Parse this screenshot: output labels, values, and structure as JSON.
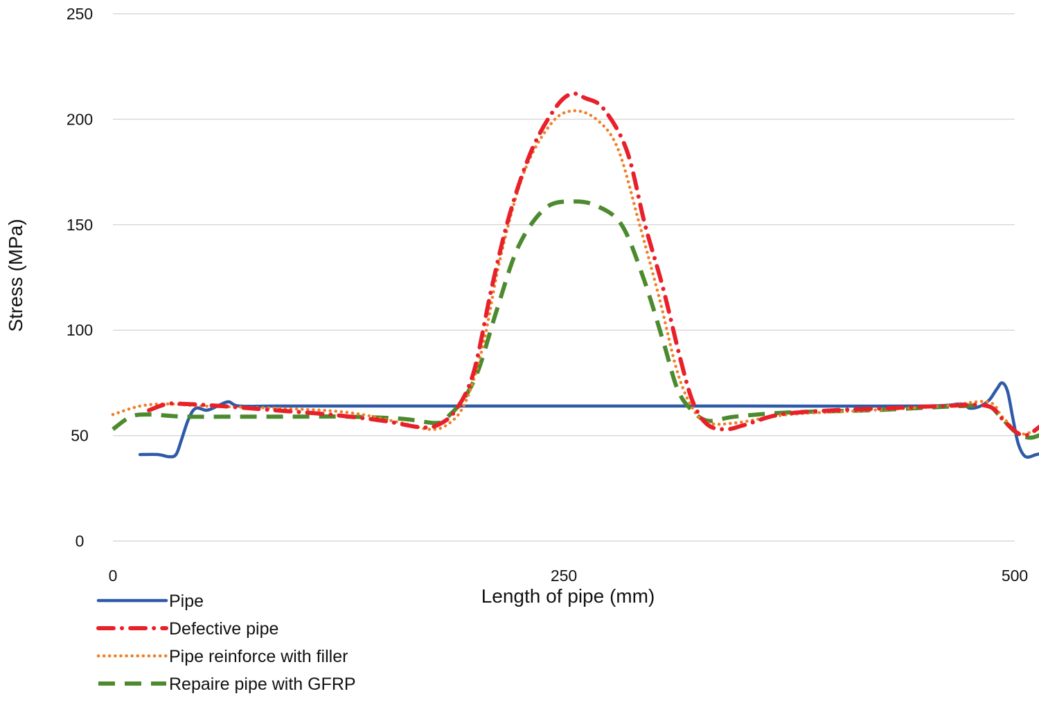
{
  "chart_data": {
    "type": "line",
    "title": "",
    "xlabel": "Length of pipe (mm)",
    "ylabel": "Stress (MPa)",
    "xlim": [
      0,
      500
    ],
    "ylim": [
      0,
      250
    ],
    "x_ticks": [
      0,
      250,
      500
    ],
    "y_ticks": [
      0,
      50,
      100,
      150,
      200,
      250
    ],
    "grid": "horizontal",
    "legend_position": "bottom-left",
    "series": [
      {
        "name": "Pipe",
        "color": "#2E5AA8",
        "style": "solid",
        "points": [
          [
            15,
            41
          ],
          [
            25,
            41
          ],
          [
            31,
            40
          ],
          [
            35,
            41
          ],
          [
            38,
            48
          ],
          [
            42,
            58
          ],
          [
            46,
            63
          ],
          [
            52,
            62
          ],
          [
            58,
            64
          ],
          [
            64,
            66
          ],
          [
            70,
            64
          ],
          [
            90,
            64
          ],
          [
            150,
            64
          ],
          [
            250,
            64
          ],
          [
            350,
            64
          ],
          [
            450,
            64
          ],
          [
            470,
            65
          ],
          [
            475,
            63
          ],
          [
            481,
            64
          ],
          [
            486,
            67
          ],
          [
            490,
            72
          ],
          [
            493,
            75
          ],
          [
            496,
            71
          ],
          [
            499,
            58
          ],
          [
            502,
            46
          ],
          [
            506,
            40
          ],
          [
            512,
            41
          ],
          [
            517,
            42
          ]
        ]
      },
      {
        "name": "Defective pipe",
        "color": "#E8202A",
        "style": "dashdot",
        "points": [
          [
            20,
            62
          ],
          [
            30,
            65
          ],
          [
            40,
            65
          ],
          [
            60,
            64
          ],
          [
            90,
            62
          ],
          [
            120,
            60
          ],
          [
            150,
            57
          ],
          [
            170,
            54
          ],
          [
            180,
            55
          ],
          [
            190,
            62
          ],
          [
            200,
            80
          ],
          [
            210,
            120
          ],
          [
            220,
            155
          ],
          [
            232,
            185
          ],
          [
            245,
            205
          ],
          [
            254,
            212
          ],
          [
            262,
            210
          ],
          [
            272,
            205
          ],
          [
            285,
            185
          ],
          [
            295,
            150
          ],
          [
            305,
            120
          ],
          [
            315,
            85
          ],
          [
            322,
            65
          ],
          [
            330,
            55
          ],
          [
            340,
            53
          ],
          [
            350,
            55
          ],
          [
            370,
            60
          ],
          [
            400,
            62
          ],
          [
            430,
            63
          ],
          [
            460,
            64
          ],
          [
            485,
            64
          ],
          [
            495,
            56
          ],
          [
            505,
            50
          ],
          [
            515,
            55
          ],
          [
            518,
            57
          ]
        ]
      },
      {
        "name": "Pipe reinforce with filler",
        "color": "#F07F26",
        "style": "dotted",
        "points": [
          [
            0,
            60
          ],
          [
            15,
            64
          ],
          [
            30,
            65
          ],
          [
            50,
            64
          ],
          [
            90,
            63
          ],
          [
            130,
            61
          ],
          [
            160,
            56
          ],
          [
            175,
            53
          ],
          [
            185,
            55
          ],
          [
            195,
            65
          ],
          [
            205,
            92
          ],
          [
            215,
            135
          ],
          [
            228,
            175
          ],
          [
            243,
            198
          ],
          [
            255,
            204
          ],
          [
            268,
            200
          ],
          [
            280,
            186
          ],
          [
            292,
            150
          ],
          [
            303,
            115
          ],
          [
            313,
            80
          ],
          [
            322,
            62
          ],
          [
            330,
            56
          ],
          [
            345,
            56
          ],
          [
            375,
            60
          ],
          [
            420,
            62
          ],
          [
            460,
            64
          ],
          [
            485,
            66
          ],
          [
            493,
            59
          ],
          [
            503,
            51
          ],
          [
            512,
            53
          ],
          [
            517,
            56
          ]
        ]
      },
      {
        "name": "Repaire pipe with GFRP",
        "color": "#4C8A2E",
        "style": "dashed",
        "points": [
          [
            0,
            53
          ],
          [
            10,
            59
          ],
          [
            20,
            60
          ],
          [
            40,
            59
          ],
          [
            70,
            59
          ],
          [
            100,
            59
          ],
          [
            130,
            59
          ],
          [
            160,
            58
          ],
          [
            180,
            56
          ],
          [
            187,
            60
          ],
          [
            195,
            68
          ],
          [
            203,
            82
          ],
          [
            213,
            110
          ],
          [
            225,
            140
          ],
          [
            240,
            158
          ],
          [
            255,
            161
          ],
          [
            268,
            159
          ],
          [
            282,
            150
          ],
          [
            294,
            125
          ],
          [
            305,
            95
          ],
          [
            313,
            72
          ],
          [
            321,
            62
          ],
          [
            330,
            57
          ],
          [
            345,
            59
          ],
          [
            375,
            61
          ],
          [
            420,
            62
          ],
          [
            470,
            64
          ],
          [
            485,
            64
          ],
          [
            491,
            60
          ],
          [
            500,
            52
          ],
          [
            508,
            49
          ],
          [
            516,
            51
          ],
          [
            518,
            52
          ]
        ]
      }
    ]
  }
}
